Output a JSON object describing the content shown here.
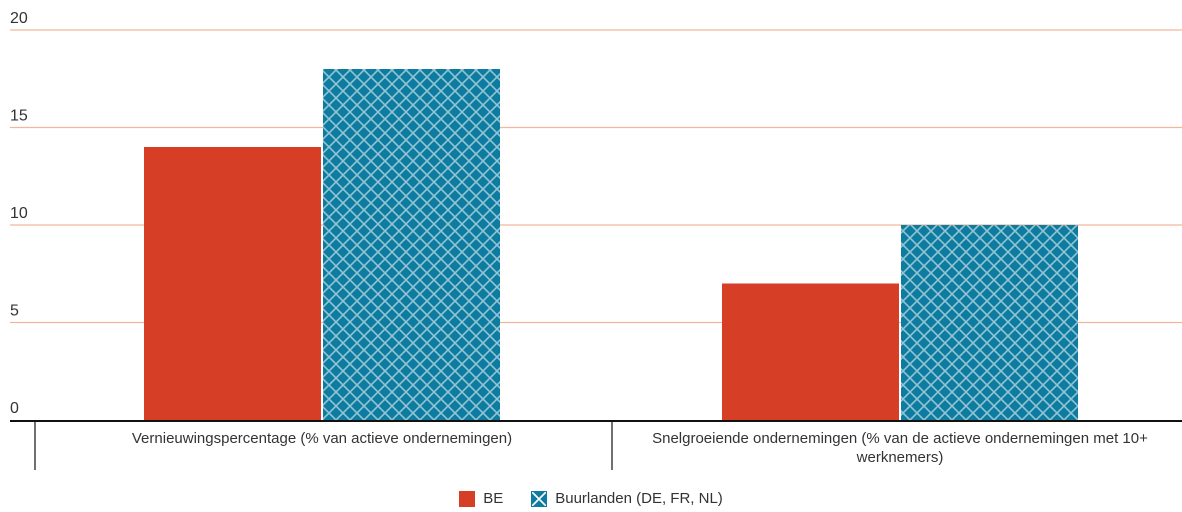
{
  "colors": {
    "be": "#d63f26",
    "neighbours": "#0e7ca0",
    "grid": "#f4b69a",
    "axis": "#111111"
  },
  "chart_data": {
    "type": "bar",
    "categories": [
      [
        "Vernieuwingspercentage (% van actieve ondernemingen)"
      ],
      [
        "Snelgroeiende ondernemingen (% van de actieve ondernemingen met 10+",
        "werknemers)"
      ]
    ],
    "series": [
      {
        "name": "BE",
        "values": [
          14,
          7
        ],
        "pattern": "solid"
      },
      {
        "name": "Buurlanden (DE, FR, NL)",
        "values": [
          18,
          10
        ],
        "pattern": "crosshatch"
      }
    ],
    "ylim": [
      0,
      20
    ],
    "yticks": [
      0,
      5,
      10,
      15,
      20
    ],
    "grid": true,
    "legend_position": "bottom-center"
  }
}
